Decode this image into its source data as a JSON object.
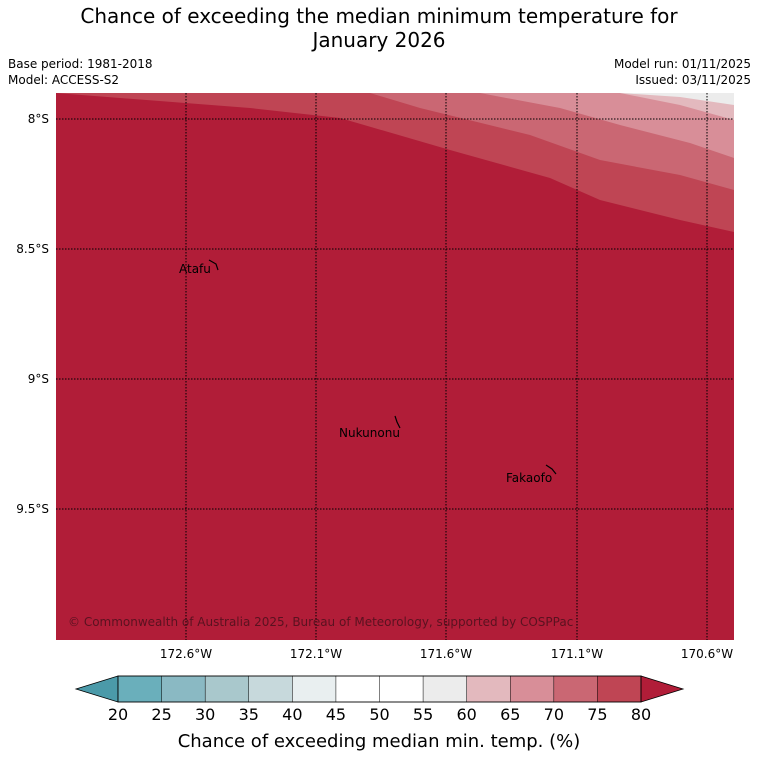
{
  "title_line1": "Chance of exceeding the median minimum temperature for",
  "title_line2": "January 2026",
  "meta": {
    "base_period": "Base period: 1981-2018",
    "model": "Model: ACCESS-S2",
    "model_run": "Model run: 01/11/2025",
    "issued": "Issued: 03/11/2025"
  },
  "map": {
    "lat_labels": [
      "8°S",
      "8.5°S",
      "9°S",
      "9.5°S"
    ],
    "lon_labels": [
      "172.6°W",
      "172.1°W",
      "171.6°W",
      "171.1°W",
      "170.6°W"
    ],
    "places": [
      {
        "name": "Atafu"
      },
      {
        "name": "Nukunonu"
      },
      {
        "name": "Fakaofo"
      }
    ],
    "copyright": "© Commonwealth of Australia 2025, Bureau of Meteorology, supported by COSPPac",
    "dominant_category": "above 80%"
  },
  "colorbar": {
    "ticks": [
      "20",
      "25",
      "30",
      "35",
      "40",
      "45",
      "50",
      "55",
      "60",
      "65",
      "70",
      "75",
      "80"
    ],
    "colors": [
      "#6aafbb",
      "#8ab9c3",
      "#a9c8cc",
      "#c7d9dc",
      "#e9eff0",
      "#ffffff",
      "#ffffff",
      "#ececec",
      "#e3b9be",
      "#d88e98",
      "#ca6773",
      "#bf4554"
    ],
    "under_color": "#4b9aa9",
    "over_color": "#b11d38",
    "label": "Chance of exceeding median min. temp. (%)"
  }
}
